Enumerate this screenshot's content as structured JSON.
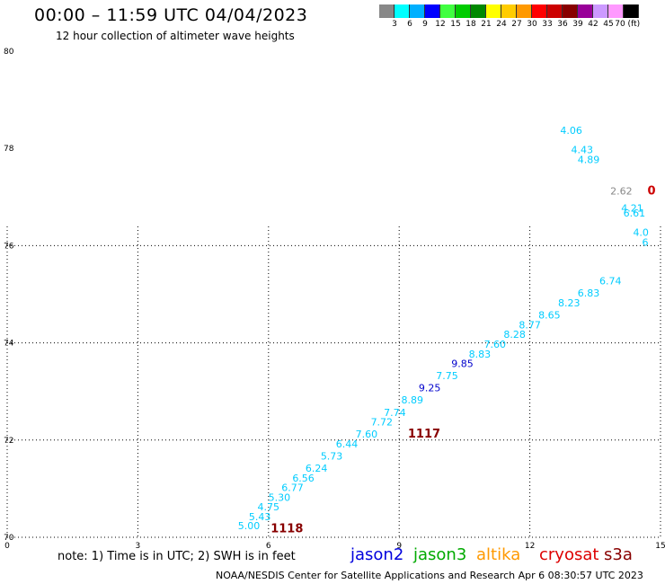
{
  "header": {
    "title": "00:00 – 11:59 UTC 04/04/2023",
    "subtitle": "12 hour collection of altimeter wave heights"
  },
  "colorbar": {
    "colors": [
      "#888888",
      "#00ffff",
      "#00b0ff",
      "#0000ff",
      "#40ff40",
      "#00cc00",
      "#008800",
      "#ffff00",
      "#ffcc00",
      "#ff9900",
      "#ff0000",
      "#cc0000",
      "#880000",
      "#990099",
      "#cc99ff",
      "#ff99ff",
      "#000000"
    ],
    "labels": [
      "3",
      "6",
      "9",
      "12",
      "15",
      "18",
      "21",
      "24",
      "27",
      "30",
      "33",
      "36",
      "39",
      "42",
      "45",
      "70 (ft)"
    ]
  },
  "chart_data": {
    "type": "scatter",
    "title": "00:00 – 11:59 UTC 04/04/2023",
    "subtitle": "12 hour collection of altimeter wave heights",
    "xlabel": "",
    "ylabel": "",
    "x_ticks": [
      "0",
      "3",
      "6",
      "9",
      "12",
      "15"
    ],
    "y_ticks": [
      "70",
      "72",
      "74",
      "76",
      "78",
      "80"
    ],
    "xlim": [
      0,
      15
    ],
    "ylim": [
      70,
      80
    ],
    "grid": true,
    "points": [
      {
        "x": 5.55,
        "y": 70.17,
        "label": "5.00",
        "color": "#00ccff"
      },
      {
        "x": 5.8,
        "y": 70.35,
        "label": "5.43",
        "color": "#00ccff"
      },
      {
        "x": 6.0,
        "y": 70.55,
        "label": "4.75",
        "color": "#00ccff"
      },
      {
        "x": 6.25,
        "y": 70.75,
        "label": "5.30",
        "color": "#00ccff"
      },
      {
        "x": 6.55,
        "y": 70.95,
        "label": "6.77",
        "color": "#00ccff"
      },
      {
        "x": 6.8,
        "y": 71.15,
        "label": "6.56",
        "color": "#00ccff"
      },
      {
        "x": 7.1,
        "y": 71.35,
        "label": "6.24",
        "color": "#00ccff"
      },
      {
        "x": 7.45,
        "y": 71.6,
        "label": "5.73",
        "color": "#00ccff"
      },
      {
        "x": 7.8,
        "y": 71.85,
        "label": "6.44",
        "color": "#00ccff"
      },
      {
        "x": 8.25,
        "y": 72.05,
        "label": "7.60",
        "color": "#00ccff"
      },
      {
        "x": 8.6,
        "y": 72.3,
        "label": "7.72",
        "color": "#00ccff"
      },
      {
        "x": 8.9,
        "y": 72.5,
        "label": "7.74",
        "color": "#00ccff"
      },
      {
        "x": 9.3,
        "y": 72.75,
        "label": "8.89",
        "color": "#00ccff"
      },
      {
        "x": 9.7,
        "y": 73.0,
        "label": "9.25",
        "color": "#0000cc"
      },
      {
        "x": 10.1,
        "y": 73.25,
        "label": "7.75",
        "color": "#00ccff"
      },
      {
        "x": 10.45,
        "y": 73.5,
        "label": "9.85",
        "color": "#0000cc"
      },
      {
        "x": 10.85,
        "y": 73.7,
        "label": "8.83",
        "color": "#00ccff"
      },
      {
        "x": 11.2,
        "y": 73.9,
        "label": "7.60",
        "color": "#00ccff"
      },
      {
        "x": 11.65,
        "y": 74.1,
        "label": "8.28",
        "color": "#00ccff"
      },
      {
        "x": 12.0,
        "y": 74.3,
        "label": "8.77",
        "color": "#00ccff"
      },
      {
        "x": 12.45,
        "y": 74.5,
        "label": "8.65",
        "color": "#00ccff"
      },
      {
        "x": 12.9,
        "y": 74.75,
        "label": "8.23",
        "color": "#00ccff"
      },
      {
        "x": 13.35,
        "y": 74.95,
        "label": "6.83",
        "color": "#00ccff"
      },
      {
        "x": 13.85,
        "y": 75.2,
        "label": "6.74",
        "color": "#00ccff"
      },
      {
        "x": 12.95,
        "y": 78.3,
        "label": "4.06",
        "color": "#00ccff"
      },
      {
        "x": 13.2,
        "y": 77.9,
        "label": "4.43",
        "color": "#00ccff"
      },
      {
        "x": 13.35,
        "y": 77.7,
        "label": "4.89",
        "color": "#00ccff"
      },
      {
        "x": 14.1,
        "y": 77.05,
        "label": "2.62",
        "color": "#888888"
      },
      {
        "x": 14.35,
        "y": 76.7,
        "label": "4.21",
        "color": "#00ccff"
      },
      {
        "x": 14.4,
        "y": 76.6,
        "label": "6.61",
        "color": "#00ccff"
      },
      {
        "x": 14.55,
        "y": 76.2,
        "label": "4.0",
        "color": "#00ccff"
      },
      {
        "x": 14.65,
        "y": 76.0,
        "label": "6",
        "color": "#00ccff"
      }
    ],
    "orbit_labels": [
      {
        "x": 6.05,
        "y": 70.1,
        "label": "1118",
        "color": "#880000"
      },
      {
        "x": 9.2,
        "y": 72.05,
        "label": "1117",
        "color": "#880000"
      },
      {
        "x": 14.7,
        "y": 77.05,
        "label": "0",
        "color": "#cc0000"
      }
    ]
  },
  "footer": {
    "note": "note: 1) Time is in UTC; 2) SWH is in feet",
    "satellites": [
      {
        "name": "jason2",
        "color": "#0000dd"
      },
      {
        "name": "jason3",
        "color": "#00aa00"
      },
      {
        "name": "altika",
        "color": "#ff9900"
      },
      {
        "name": "cryosat",
        "color": "#dd0000"
      },
      {
        "name": "s3a",
        "color": "#880000"
      }
    ],
    "credit": "NOAA/NESDIS Center for Satellite Applications and Research    Apr  6 08:30:57 UTC 2023"
  }
}
